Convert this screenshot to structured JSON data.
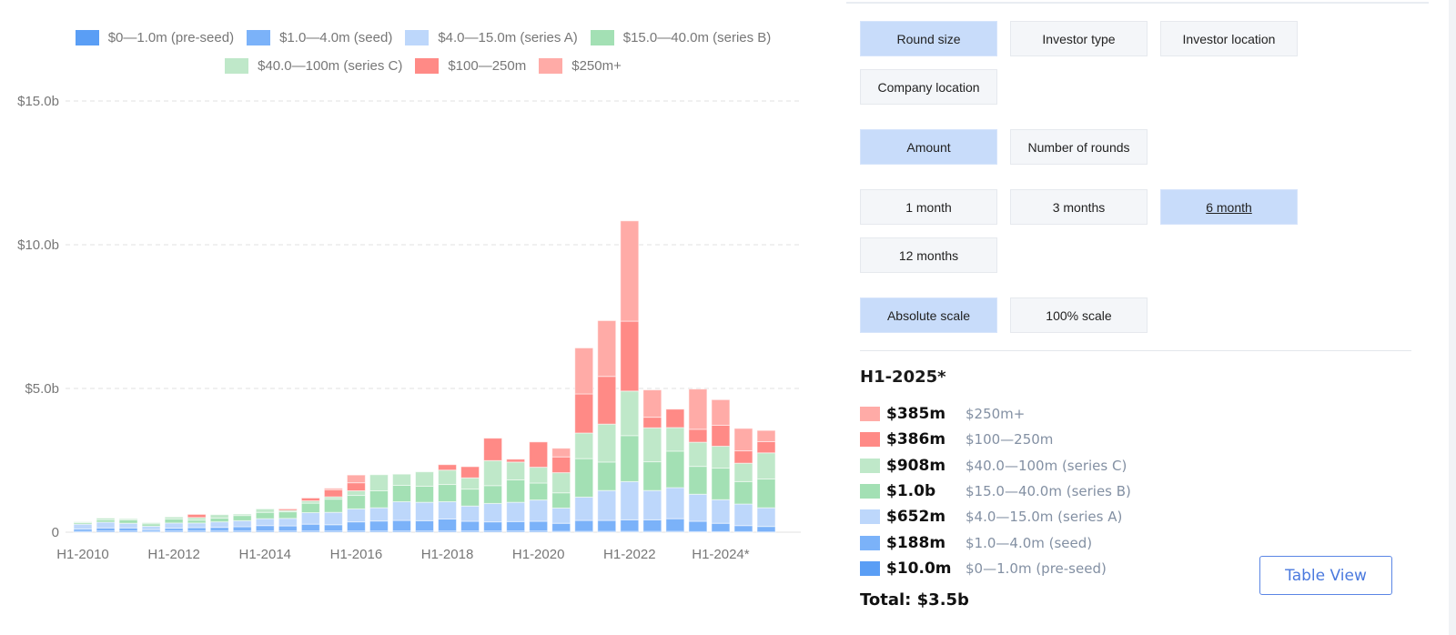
{
  "colors": {
    "pre_seed": "#5a9ef5",
    "seed": "#7bb2f9",
    "series_a": "#bdd7fb",
    "series_b": "#a3e0b4",
    "series_c": "#bfe8c9",
    "r100_250": "#ff8a86",
    "r250_plus": "#ffaba7",
    "active_button": "#c8dcfa",
    "link_blue": "#4a79de"
  },
  "legend": [
    {
      "key": "pre_seed",
      "label": "$0—1.0m (pre-seed)"
    },
    {
      "key": "seed",
      "label": "$1.0—4.0m (seed)"
    },
    {
      "key": "series_a",
      "label": "$4.0—15.0m (series A)"
    },
    {
      "key": "series_b",
      "label": "$15.0—40.0m (series B)"
    },
    {
      "key": "series_c",
      "label": "$40.0—100m (series C)"
    },
    {
      "key": "r100_250",
      "label": "$100—250m"
    },
    {
      "key": "r250_plus",
      "label": "$250m+"
    }
  ],
  "controls": {
    "breakdown": [
      {
        "label": "Round size",
        "active": true
      },
      {
        "label": "Investor type",
        "active": false
      },
      {
        "label": "Investor location",
        "active": false
      },
      {
        "label": "Company location",
        "active": false
      }
    ],
    "metric": [
      {
        "label": "Amount",
        "active": true
      },
      {
        "label": "Number of rounds",
        "active": false
      }
    ],
    "period": [
      {
        "label": "1 month",
        "active": false
      },
      {
        "label": "3 months",
        "active": false
      },
      {
        "label": "6 month",
        "active": true
      },
      {
        "label": "12 months",
        "active": false
      }
    ],
    "scale": [
      {
        "label": "Absolute scale",
        "active": true
      },
      {
        "label": "100% scale",
        "active": false
      }
    ]
  },
  "detail": {
    "title": "H1-2025*",
    "rows": [
      {
        "key": "r250_plus",
        "value": "$385m",
        "label": "$250m+"
      },
      {
        "key": "r100_250",
        "value": "$386m",
        "label": "$100—250m"
      },
      {
        "key": "series_c",
        "value": "$908m",
        "label": "$40.0—100m (series C)"
      },
      {
        "key": "series_b",
        "value": "$1.0b",
        "label": "$15.0—40.0m (series B)"
      },
      {
        "key": "series_a",
        "value": "$652m",
        "label": "$4.0—15.0m (series A)"
      },
      {
        "key": "seed",
        "value": "$188m",
        "label": "$1.0—4.0m (seed)"
      },
      {
        "key": "pre_seed",
        "value": "$10.0m",
        "label": "$0—1.0m (pre-seed)"
      }
    ],
    "total": "Total: $3.5b"
  },
  "table_view_label": "Table View",
  "chart_data": {
    "type": "bar",
    "stacked": true,
    "title": "",
    "xlabel": "",
    "ylabel": "",
    "unit": "$b",
    "ylim": [
      0,
      15
    ],
    "yticks": [
      {
        "value": 0,
        "label": "0"
      },
      {
        "value": 5,
        "label": "$5.0b"
      },
      {
        "value": 10,
        "label": "$10.0b"
      },
      {
        "value": 15,
        "label": "$15.0b"
      }
    ],
    "grid": true,
    "legend_position": "top",
    "categories": [
      "H1-2010",
      "H2-2010",
      "H1-2011",
      "H2-2011",
      "H1-2012",
      "H2-2012",
      "H1-2013",
      "H2-2013",
      "H1-2014",
      "H2-2014",
      "H1-2015",
      "H2-2015",
      "H1-2016",
      "H2-2016",
      "H1-2017",
      "H2-2017",
      "H1-2018",
      "H2-2018",
      "H1-2019",
      "H2-2019",
      "H1-2020",
      "H2-2020",
      "H1-2021",
      "H2-2021",
      "H1-2022",
      "H2-2022",
      "H1-2023",
      "H2-2023",
      "H1-2024*",
      "H2-2024*",
      "H1-2025*"
    ],
    "xtick_labels": [
      {
        "index": 0,
        "label": "H1-2010"
      },
      {
        "index": 4,
        "label": "H1-2012"
      },
      {
        "index": 8,
        "label": "H1-2014"
      },
      {
        "index": 12,
        "label": "H1-2016"
      },
      {
        "index": 16,
        "label": "H1-2018"
      },
      {
        "index": 20,
        "label": "H1-2020"
      },
      {
        "index": 24,
        "label": "H1-2022"
      },
      {
        "index": 28,
        "label": "H1-2024*"
      }
    ],
    "series": [
      {
        "key": "pre_seed",
        "name": "$0—1.0m (pre-seed)",
        "values": [
          0.03,
          0.04,
          0.04,
          0.03,
          0.04,
          0.04,
          0.04,
          0.04,
          0.04,
          0.04,
          0.04,
          0.04,
          0.04,
          0.04,
          0.04,
          0.04,
          0.04,
          0.04,
          0.04,
          0.04,
          0.04,
          0.03,
          0.03,
          0.03,
          0.03,
          0.03,
          0.03,
          0.02,
          0.02,
          0.02,
          0.01
        ]
      },
      {
        "key": "seed",
        "name": "$1.0—4.0m (seed)",
        "values": [
          0.08,
          0.11,
          0.11,
          0.06,
          0.1,
          0.12,
          0.13,
          0.15,
          0.19,
          0.18,
          0.24,
          0.22,
          0.32,
          0.35,
          0.37,
          0.36,
          0.42,
          0.34,
          0.32,
          0.33,
          0.34,
          0.28,
          0.38,
          0.38,
          0.4,
          0.4,
          0.44,
          0.36,
          0.29,
          0.21,
          0.19
        ]
      },
      {
        "key": "series_a",
        "name": "$4.0—15.0m (series A)",
        "values": [
          0.17,
          0.2,
          0.16,
          0.12,
          0.18,
          0.16,
          0.19,
          0.21,
          0.24,
          0.26,
          0.4,
          0.43,
          0.45,
          0.46,
          0.65,
          0.64,
          0.6,
          0.53,
          0.64,
          0.67,
          0.74,
          0.53,
          0.81,
          1.04,
          1.33,
          1.02,
          1.08,
          0.94,
          0.82,
          0.75,
          0.65
        ]
      },
      {
        "key": "series_b",
        "name": "$15.0—40.0m (series B)",
        "values": [
          0.05,
          0.08,
          0.12,
          0.08,
          0.14,
          0.1,
          0.13,
          0.18,
          0.22,
          0.23,
          0.33,
          0.46,
          0.47,
          0.59,
          0.57,
          0.56,
          0.6,
          0.59,
          0.62,
          0.78,
          0.59,
          0.53,
          1.34,
          0.99,
          1.6,
          1.0,
          1.27,
          0.97,
          1.1,
          0.78,
          1.0
        ]
      },
      {
        "key": "series_c",
        "name": "$40.0—100m (series C)",
        "values": [
          0.03,
          0.06,
          0.04,
          0.04,
          0.07,
          0.09,
          0.12,
          0.05,
          0.12,
          0.05,
          0.08,
          0.08,
          0.16,
          0.56,
          0.39,
          0.5,
          0.5,
          0.39,
          0.87,
          0.62,
          0.55,
          0.7,
          0.89,
          1.32,
          1.55,
          1.18,
          0.82,
          0.84,
          0.76,
          0.64,
          0.91
        ]
      },
      {
        "key": "r100_250",
        "name": "$100—250m",
        "values": [
          0,
          0,
          0,
          0,
          0,
          0.11,
          0,
          0,
          0,
          0.05,
          0.1,
          0.25,
          0.28,
          0,
          0,
          0,
          0.19,
          0.39,
          0.78,
          0.1,
          0.88,
          0.55,
          1.36,
          1.66,
          2.43,
          0.37,
          0.64,
          0.45,
          0.73,
          0.43,
          0.39
        ]
      },
      {
        "key": "r250_plus",
        "name": "$250m+",
        "values": [
          0,
          0,
          0,
          0,
          0,
          0,
          0,
          0,
          0,
          0,
          0,
          0.05,
          0.27,
          0,
          0,
          0,
          0,
          0,
          0,
          0,
          0,
          0.3,
          1.6,
          1.94,
          3.49,
          0.95,
          0,
          1.4,
          0.89,
          0.78,
          0.39
        ]
      }
    ]
  }
}
